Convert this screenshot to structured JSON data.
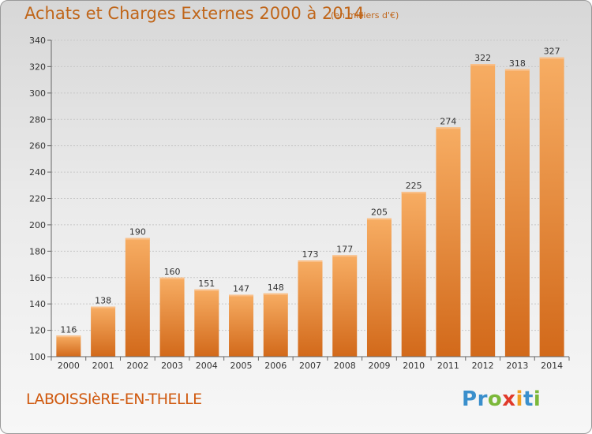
{
  "header": {
    "title": "Achats et Charges Externes 2000 à 2014",
    "subtitle": "(en milliers d'€)"
  },
  "footer": {
    "commune": "LABOISSIèRE-EN-THELLE",
    "logo_letters": [
      "P",
      "r",
      "o",
      "x",
      "i",
      "t",
      "i"
    ]
  },
  "colors": {
    "bar_light": "#f5a55a",
    "bar_dark": "#d2691a",
    "title": "#c0661a"
  },
  "chart_data": {
    "type": "bar",
    "title": "Achats et Charges Externes 2000 à 2014",
    "subtitle": "(en milliers d'€)",
    "categories": [
      "2000",
      "2001",
      "2002",
      "2003",
      "2004",
      "2005",
      "2006",
      "2007",
      "2008",
      "2009",
      "2010",
      "2011",
      "2012",
      "2013",
      "2014"
    ],
    "values": [
      116,
      138,
      190,
      160,
      151,
      147,
      148,
      173,
      177,
      205,
      225,
      274,
      322,
      318,
      327
    ],
    "xlabel": "",
    "ylabel": "",
    "ylim": [
      100,
      340
    ],
    "yticks": [
      100,
      120,
      140,
      160,
      180,
      200,
      220,
      240,
      260,
      280,
      300,
      320,
      340
    ],
    "grid": true,
    "legend": "none"
  }
}
